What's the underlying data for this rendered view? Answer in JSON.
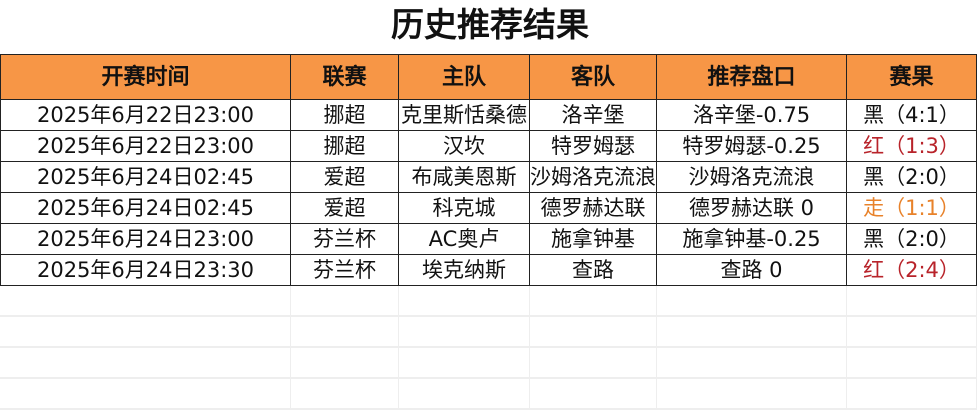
{
  "title": "历史推荐结果",
  "colors": {
    "header_bg": "#F79646",
    "red": "#B8232A",
    "orange": "#E8822A",
    "black": "#111111"
  },
  "columns": [
    "开赛时间",
    "联赛",
    "主队",
    "客队",
    "推荐盘口",
    "赛果"
  ],
  "rows": [
    {
      "time": "2025年6月22日23:00",
      "league": "挪超",
      "home": "克里斯恬桑德",
      "away": "洛辛堡",
      "pick": "洛辛堡-0.75",
      "result": "黑（4:1）",
      "result_color": "black"
    },
    {
      "time": "2025年6月22日23:00",
      "league": "挪超",
      "home": "汉坎",
      "away": "特罗姆瑟",
      "pick": "特罗姆瑟-0.25",
      "result": "红（1:3）",
      "result_color": "red"
    },
    {
      "time": "2025年6月24日02:45",
      "league": "爱超",
      "home": "布咸美恩斯",
      "away": "沙姆洛克流浪",
      "pick": "沙姆洛克流浪",
      "result": "黑（2:0）",
      "result_color": "black"
    },
    {
      "time": "2025年6月24日02:45",
      "league": "爱超",
      "home": "科克城",
      "away": "德罗赫达联",
      "pick": "德罗赫达联 0",
      "result": "走（1:1）",
      "result_color": "orange"
    },
    {
      "time": "2025年6月24日23:00",
      "league": "芬兰杯",
      "home": "AC奥卢",
      "away": "施拿钟基",
      "pick": "施拿钟基-0.25",
      "result": "黑（2:0）",
      "result_color": "black"
    },
    {
      "time": "2025年6月24日23:30",
      "league": "芬兰杯",
      "home": "埃克纳斯",
      "away": "查路",
      "pick": "查路 0",
      "result": "红（2:4）",
      "result_color": "red"
    }
  ]
}
